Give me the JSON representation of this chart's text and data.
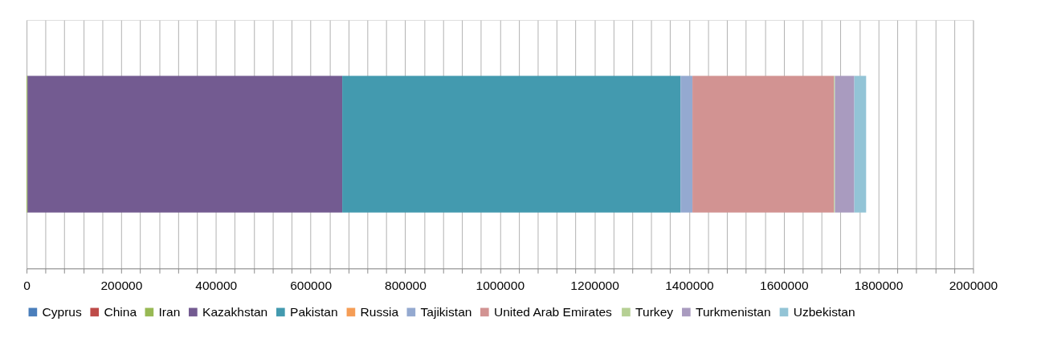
{
  "chart_data": {
    "type": "bar",
    "orientation": "horizontal",
    "stacked": true,
    "categories": [
      null
    ],
    "series": [
      {
        "name": "Cyprus",
        "color": "#4a7ebb",
        "values": [
          0
        ]
      },
      {
        "name": "China",
        "color": "#be4b48",
        "values": [
          0
        ]
      },
      {
        "name": "Iran",
        "color": "#98b954",
        "values": [
          2000
        ]
      },
      {
        "name": "Kazakhstan",
        "color": "#735b91",
        "values": [
          665000
        ]
      },
      {
        "name": "Pakistan",
        "color": "#439aaf",
        "values": [
          715000
        ]
      },
      {
        "name": "Russia",
        "color": "#f59d56",
        "values": [
          0
        ]
      },
      {
        "name": "Tajikistan",
        "color": "#94a9d0",
        "values": [
          25000
        ]
      },
      {
        "name": "United Arab Emirates",
        "color": "#d29392",
        "values": [
          299000
        ]
      },
      {
        "name": "Turkey",
        "color": "#b6d094",
        "values": [
          2000
        ]
      },
      {
        "name": "Turkmenistan",
        "color": "#a99bbf",
        "values": [
          41000
        ]
      },
      {
        "name": "Uzbekistan",
        "color": "#93c4d6",
        "values": [
          25000
        ]
      }
    ],
    "xlim": [
      0,
      2000000
    ],
    "xticks": [
      0,
      {
        "value": 40000,
        "label": null
      },
      {
        "value": 80000,
        "label": null
      },
      {
        "value": 120000,
        "label": null
      },
      {
        "value": 160000,
        "label": null
      },
      200000,
      {
        "value": 240000,
        "label": null
      },
      {
        "value": 280000,
        "label": null
      },
      {
        "value": 320000,
        "label": null
      },
      {
        "value": 360000,
        "label": null
      },
      400000,
      {
        "value": 440000,
        "label": null
      },
      {
        "value": 480000,
        "label": null
      },
      {
        "value": 520000,
        "label": null
      },
      {
        "value": 560000,
        "label": null
      },
      600000,
      {
        "value": 640000,
        "label": null
      },
      {
        "value": 680000,
        "label": null
      },
      {
        "value": 720000,
        "label": null
      },
      {
        "value": 760000,
        "label": null
      },
      800000,
      {
        "value": 840000,
        "label": null
      },
      {
        "value": 880000,
        "label": null
      },
      {
        "value": 920000,
        "label": null
      },
      {
        "value": 960000,
        "label": null
      },
      1000000,
      {
        "value": 1040000,
        "label": null
      },
      {
        "value": 1080000,
        "label": null
      },
      {
        "value": 1120000,
        "label": null
      },
      {
        "value": 1160000,
        "label": null
      },
      1200000,
      {
        "value": 1240000,
        "label": null
      },
      {
        "value": 1280000,
        "label": null
      },
      {
        "value": 1320000,
        "label": null
      },
      {
        "value": 1360000,
        "label": null
      },
      1400000,
      {
        "value": 1440000,
        "label": null
      },
      {
        "value": 1480000,
        "label": null
      },
      {
        "value": 1520000,
        "label": null
      },
      {
        "value": 1560000,
        "label": null
      },
      1600000,
      {
        "value": 1640000,
        "label": null
      },
      {
        "value": 1680000,
        "label": null
      },
      {
        "value": 1720000,
        "label": null
      },
      {
        "value": 1760000,
        "label": null
      },
      1800000,
      {
        "value": 1840000,
        "label": null
      },
      {
        "value": 1880000,
        "label": null
      },
      {
        "value": 1920000,
        "label": null
      },
      {
        "value": 1960000,
        "label": null
      },
      2000000
    ],
    "grid": "x",
    "legend": "bottom",
    "tick_labels": "x"
  }
}
